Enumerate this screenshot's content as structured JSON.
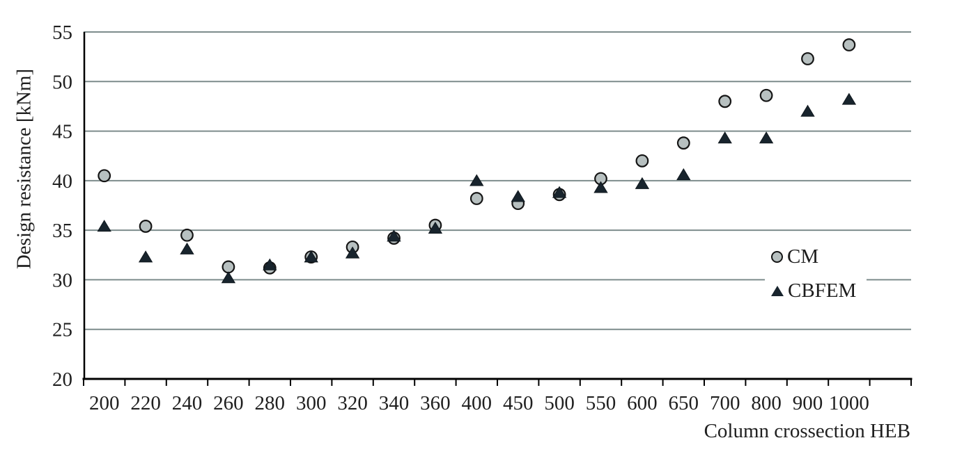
{
  "chart_data": {
    "type": "scatter",
    "title": "",
    "xlabel": "Column crossection HEB",
    "ylabel": "Design resistance [kNm]",
    "categories": [
      "200",
      "220",
      "240",
      "260",
      "280",
      "300",
      "320",
      "340",
      "360",
      "400",
      "450",
      "500",
      "550",
      "600",
      "650",
      "700",
      "800",
      "900",
      "1000"
    ],
    "series": [
      {
        "name": "CM",
        "marker": "circle",
        "color": "#b7c0c0",
        "edge_color": "#151515",
        "values": [
          40.5,
          35.4,
          34.5,
          31.3,
          31.2,
          32.3,
          33.3,
          34.2,
          35.5,
          38.2,
          37.7,
          38.6,
          40.2,
          42.0,
          43.8,
          48.0,
          48.6,
          52.3,
          53.7
        ]
      },
      {
        "name": "CBFEM",
        "marker": "triangle",
        "color": "#18242d",
        "edge_color": "#10181e",
        "values": [
          35.4,
          32.3,
          33.1,
          30.2,
          31.5,
          32.3,
          32.7,
          34.4,
          35.2,
          40.0,
          38.4,
          38.8,
          39.3,
          39.7,
          40.6,
          44.3,
          44.3,
          47.0,
          48.2
        ]
      }
    ],
    "ylim": [
      20,
      55
    ],
    "yticks": [
      20,
      25,
      30,
      35,
      40,
      45,
      50,
      55
    ],
    "grid": "horizontal",
    "gridline_color": "#7d8c8c",
    "axis_color": "#000000",
    "legend_position": "inside-right",
    "legend": [
      "CM",
      "CBFEM"
    ]
  }
}
